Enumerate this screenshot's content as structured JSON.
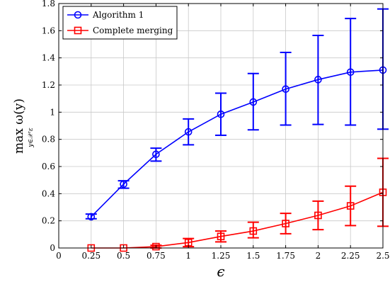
{
  "chart_data": {
    "type": "line",
    "x": [
      0.25,
      0.5,
      0.75,
      1,
      1.25,
      1.5,
      1.75,
      2,
      2.25,
      2.5
    ],
    "xlim": [
      0,
      2.5
    ],
    "ylim": [
      0,
      1.8
    ],
    "xticks": [
      "0",
      "0.25",
      "0.5",
      "0.75",
      "1",
      "1.25",
      "1.5",
      "1.75",
      "2",
      "2.25",
      "2.5"
    ],
    "yticks": [
      "0",
      "0.2",
      "0.4",
      "0.6",
      "0.8",
      "1",
      "1.2",
      "1.4",
      "1.6",
      "1.8"
    ],
    "xlabel": "ϵ",
    "ylabel": "max ω(y)",
    "ylabel_sub": "y∈𝒳ᶜε",
    "grid": true,
    "legend_position": "top-left",
    "series": [
      {
        "name": "Algorithm 1",
        "color": "#0000ff",
        "marker": "circle",
        "values": [
          0.23,
          0.47,
          0.69,
          0.855,
          0.985,
          1.075,
          1.17,
          1.24,
          1.295,
          1.31
        ],
        "err_low": [
          0.215,
          0.44,
          0.64,
          0.76,
          0.83,
          0.87,
          0.905,
          0.91,
          0.905,
          0.875
        ],
        "err_high": [
          0.25,
          0.495,
          0.735,
          0.95,
          1.14,
          1.285,
          1.44,
          1.565,
          1.69,
          1.76
        ]
      },
      {
        "name": "Complete merging",
        "color": "#ff0000",
        "marker": "square",
        "values": [
          0.0,
          0.0,
          0.01,
          0.04,
          0.085,
          0.125,
          0.18,
          0.24,
          0.31,
          0.41
        ],
        "err_low": [
          0.0,
          0.0,
          0.0,
          0.01,
          0.045,
          0.075,
          0.105,
          0.135,
          0.165,
          0.16
        ],
        "err_high": [
          0.0,
          0.0,
          0.02,
          0.07,
          0.125,
          0.19,
          0.255,
          0.345,
          0.455,
          0.66
        ]
      }
    ]
  }
}
